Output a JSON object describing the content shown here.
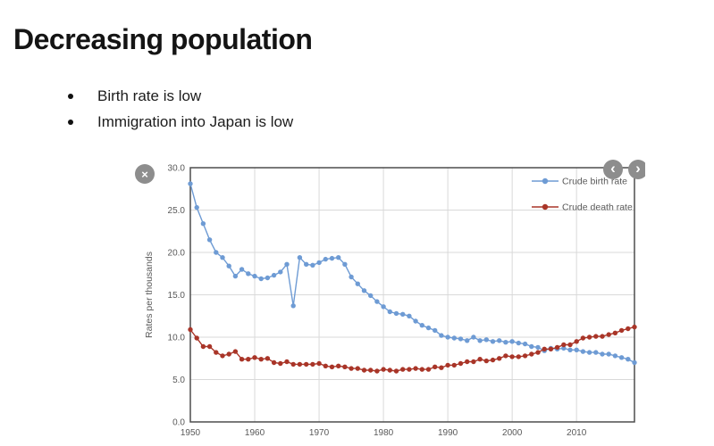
{
  "slide": {
    "title": "Decreasing population",
    "bullets": [
      "Birth rate is low",
      "Immigration into Japan is low"
    ]
  },
  "overlay": {
    "close_icon": "×",
    "prev_icon": "‹",
    "next_icon": "›"
  },
  "chart_data": {
    "type": "line",
    "title": "",
    "xlabel": "",
    "ylabel": "Rates per thousands",
    "x_start": 1950,
    "x_end": 2019,
    "ylim": [
      0,
      30
    ],
    "grid": true,
    "legend_position": "top-right",
    "y_ticks": [
      "0.0",
      "5.0",
      "10.0",
      "15.0",
      "20.0",
      "25.0",
      "30.0"
    ],
    "x_ticks": [
      1950,
      1960,
      1970,
      1980,
      1990,
      2000,
      2010
    ],
    "colors": {
      "birth": "#6E9BD4",
      "death": "#A93528",
      "grid": "#d9d9d9",
      "axis": "#4d4d4d",
      "text": "#595959"
    },
    "series": [
      {
        "name": "Crude birth rate",
        "color": "#6E9BD4",
        "values": [
          28.1,
          25.3,
          23.4,
          21.5,
          20.0,
          19.4,
          18.4,
          17.2,
          18.0,
          17.5,
          17.2,
          16.9,
          17.0,
          17.3,
          17.7,
          18.6,
          13.7,
          19.4,
          18.6,
          18.5,
          18.8,
          19.2,
          19.3,
          19.4,
          18.6,
          17.1,
          16.3,
          15.5,
          14.9,
          14.2,
          13.6,
          13.0,
          12.8,
          12.7,
          12.5,
          11.9,
          11.4,
          11.1,
          10.8,
          10.2,
          10.0,
          9.9,
          9.8,
          9.6,
          10.0,
          9.6,
          9.7,
          9.5,
          9.6,
          9.4,
          9.5,
          9.3,
          9.2,
          8.9,
          8.8,
          8.4,
          8.7,
          8.6,
          8.7,
          8.5,
          8.5,
          8.3,
          8.2,
          8.2,
          8.0,
          8.0,
          7.8,
          7.6,
          7.4,
          7.0
        ]
      },
      {
        "name": "Crude death rate",
        "color": "#A93528",
        "values": [
          10.9,
          9.9,
          8.9,
          8.9,
          8.2,
          7.8,
          8.0,
          8.3,
          7.4,
          7.4,
          7.6,
          7.4,
          7.5,
          7.0,
          6.9,
          7.1,
          6.8,
          6.8,
          6.8,
          6.8,
          6.9,
          6.6,
          6.5,
          6.6,
          6.5,
          6.3,
          6.3,
          6.1,
          6.1,
          6.0,
          6.2,
          6.1,
          6.0,
          6.2,
          6.2,
          6.3,
          6.2,
          6.2,
          6.5,
          6.4,
          6.7,
          6.7,
          6.9,
          7.1,
          7.1,
          7.4,
          7.2,
          7.3,
          7.5,
          7.8,
          7.7,
          7.7,
          7.8,
          8.0,
          8.2,
          8.6,
          8.6,
          8.8,
          9.1,
          9.1,
          9.5,
          9.9,
          10.0,
          10.1,
          10.1,
          10.3,
          10.5,
          10.8,
          11.0,
          11.2
        ]
      }
    ]
  }
}
